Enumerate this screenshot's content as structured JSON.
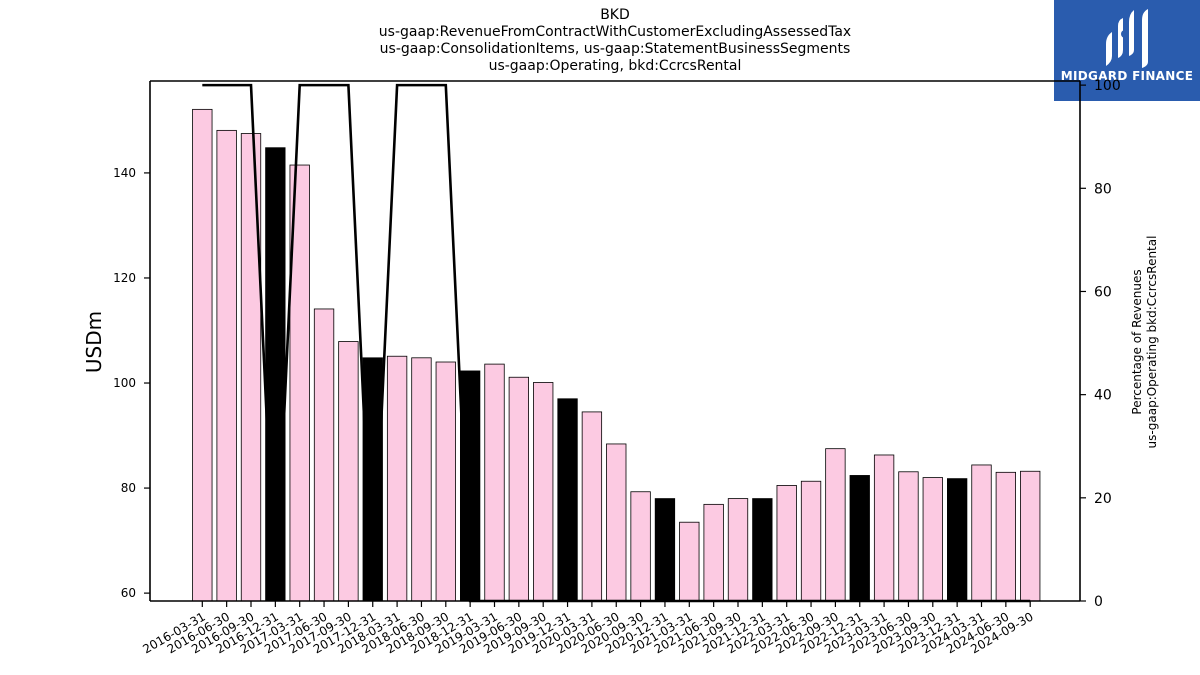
{
  "title_lines": [
    "BKD",
    "us-gaap:RevenueFromContractWithCustomerExcludingAssessedTax",
    "us-gaap:ConsolidationItems, us-gaap:StatementBusinessSegments",
    "us-gaap:Operating, bkd:CcrcsRental"
  ],
  "logo": {
    "text": "MIDGARD FINANCE",
    "icon": "midgard-logo-icon",
    "background": "#2a5cae"
  },
  "colors": {
    "bar_quarter": "#fccae2",
    "bar_year_end": "#000000",
    "line": "#000000"
  },
  "chart_data": {
    "type": "bar",
    "categories": [
      "2016-03-31",
      "2016-06-30",
      "2016-09-30",
      "2016-12-31",
      "2017-03-31",
      "2017-06-30",
      "2017-09-30",
      "2017-12-31",
      "2018-03-31",
      "2018-06-30",
      "2018-09-30",
      "2018-12-31",
      "2019-03-31",
      "2019-06-30",
      "2019-09-30",
      "2019-12-31",
      "2020-03-31",
      "2020-06-30",
      "2020-09-30",
      "2020-12-31",
      "2021-03-31",
      "2021-06-30",
      "2021-09-30",
      "2021-12-31",
      "2022-03-31",
      "2022-06-30",
      "2022-09-30",
      "2022-12-31",
      "2023-03-31",
      "2023-06-30",
      "2023-09-30",
      "2023-12-31",
      "2024-03-31",
      "2024-06-30",
      "2024-09-30"
    ],
    "series": [
      {
        "axis": "left",
        "values": [
          152.1,
          148.1,
          147.5,
          144.8,
          141.5,
          114.1,
          107.9,
          104.8,
          105.1,
          104.8,
          104.0,
          102.3,
          103.6,
          101.1,
          100.1,
          97.0,
          94.5,
          88.4,
          79.3,
          78.0,
          73.5,
          76.9,
          78.0,
          78.0,
          80.5,
          81.3,
          87.5,
          82.4,
          86.3,
          83.1,
          82.0,
          81.8,
          84.4,
          83.0,
          83.2
        ]
      },
      {
        "axis": "right",
        "type": "line",
        "values": [
          100,
          100,
          100,
          0,
          100,
          100,
          100,
          0,
          100,
          100,
          100,
          0,
          0,
          0,
          0,
          0,
          0,
          0,
          0,
          0,
          0,
          0,
          0,
          0,
          0,
          0,
          0,
          0,
          0,
          0,
          0,
          0,
          0,
          0,
          0
        ]
      }
    ],
    "year_end_highlight": [
      false,
      false,
      false,
      true,
      false,
      false,
      false,
      true,
      false,
      false,
      false,
      true,
      false,
      false,
      false,
      true,
      false,
      false,
      false,
      true,
      false,
      false,
      false,
      true,
      false,
      false,
      false,
      true,
      false,
      false,
      false,
      true,
      false,
      false,
      false
    ],
    "ylabel": "USDm",
    "ylabel_right": [
      "Percentage of Revenues",
      "us-gaap:Operating bkd:CcrcsRental"
    ],
    "ylim": [
      58.5,
      157.5
    ],
    "ylim_right": [
      0,
      100.8
    ],
    "yticks": [
      60,
      80,
      100,
      120,
      140
    ],
    "yticks_right": [
      0,
      20,
      40,
      60,
      80,
      100
    ],
    "grid": false,
    "legend": "none"
  }
}
